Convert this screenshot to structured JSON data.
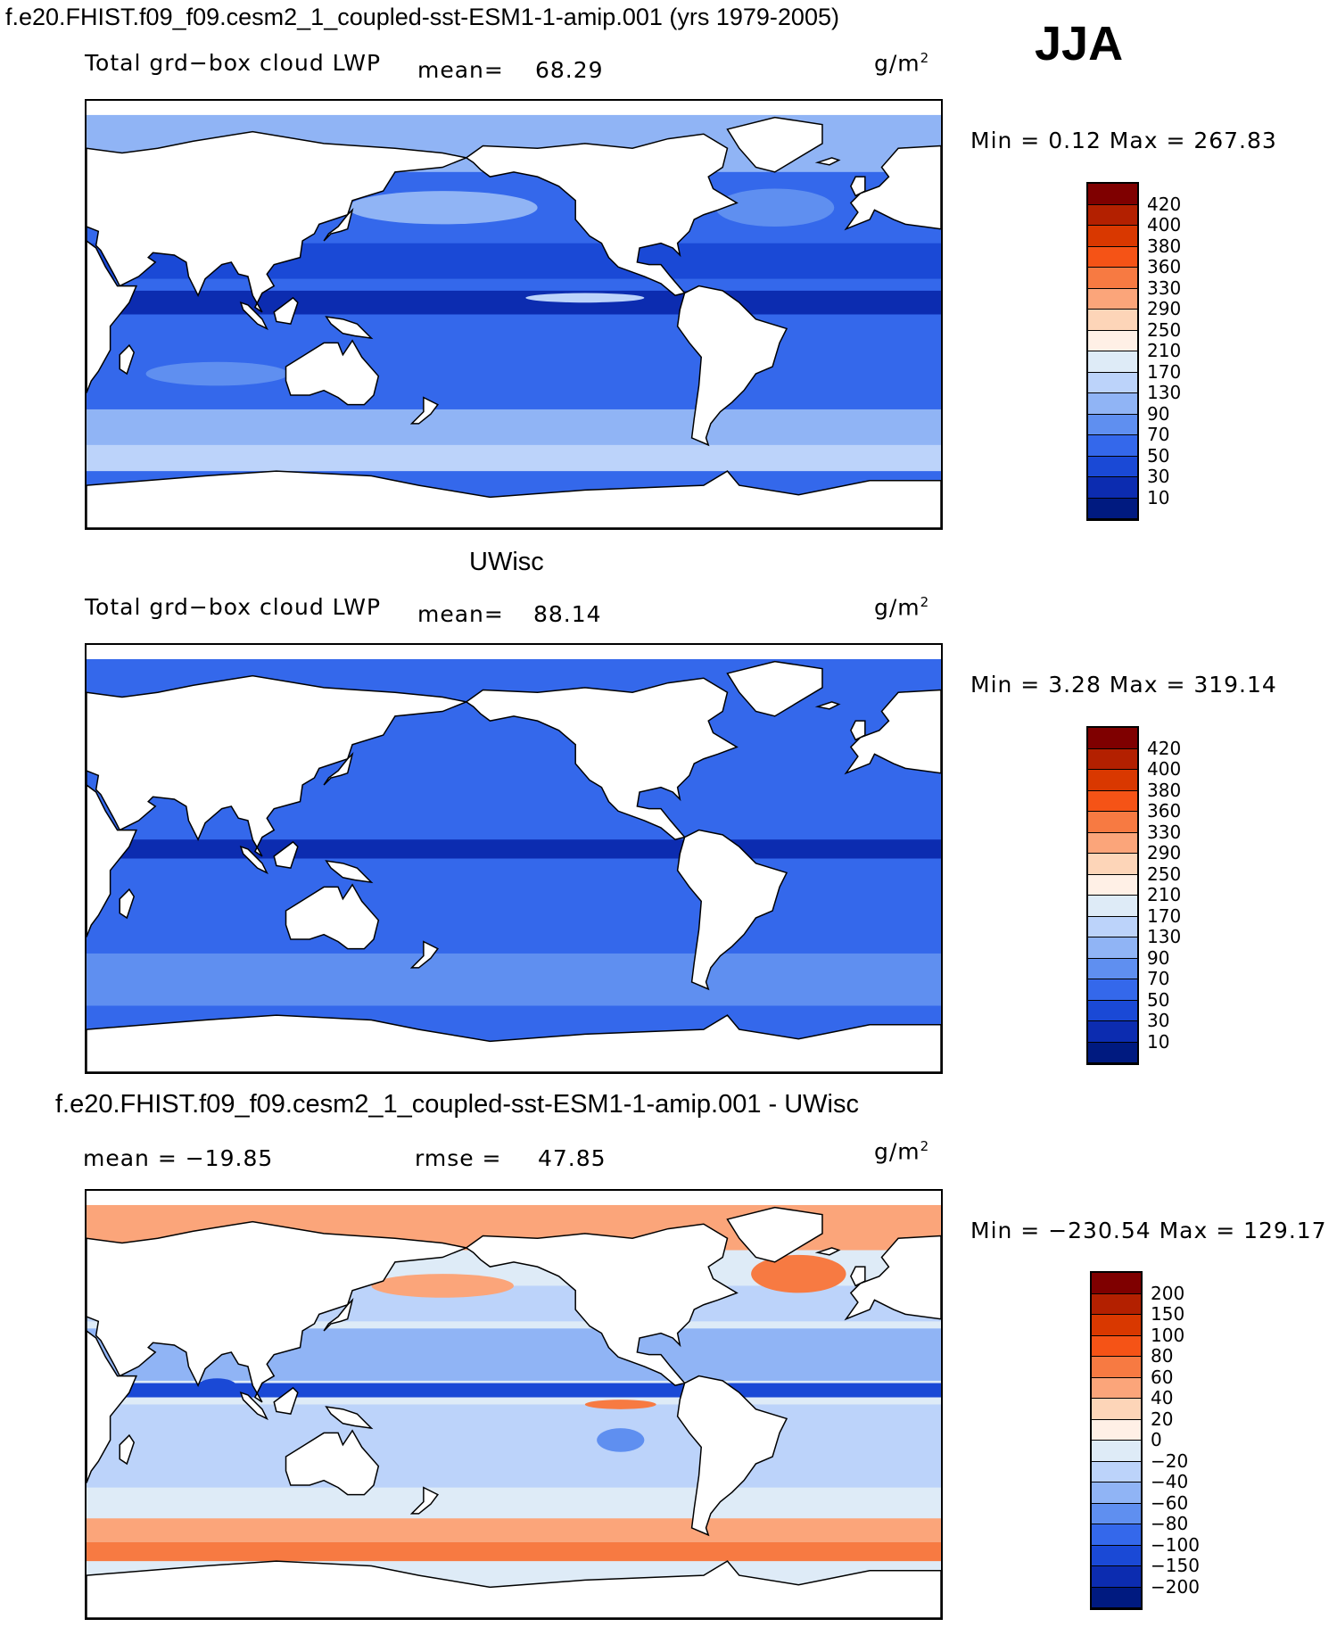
{
  "figure": {
    "main_title": "f.e20.FHIST.f09_f09.cesm2_1_coupled-sst-ESM1-1-amip.001 (yrs 1979-2005)",
    "season": "JJA"
  },
  "panels": [
    {
      "heading": "",
      "left_label": "Total grd−box cloud LWP",
      "stat_label": "mean=",
      "stat_value": "68.29",
      "unit_base": "g/m",
      "unit_exp": "2",
      "minmax": "Min =    0.12  Max =  267.83",
      "colorbar": {
        "labels": [
          "420",
          "400",
          "380",
          "360",
          "330",
          "290",
          "250",
          "210",
          "170",
          "130",
          "90",
          "70",
          "50",
          "30",
          "10"
        ],
        "colors": [
          "#7f0000",
          "#b32000",
          "#d93800",
          "#f55316",
          "#f77a42",
          "#fba57a",
          "#fdd5b8",
          "#fff0e6",
          "#deebf7",
          "#bcd3fa",
          "#90b4f5",
          "#5f8ff0",
          "#3468eb",
          "#1a49d6",
          "#0c2cb0",
          "#001a80"
        ]
      },
      "palette": "base"
    },
    {
      "heading": "UWisc",
      "left_label": "Total grd−box cloud LWP",
      "stat_label": "mean=",
      "stat_value": "88.14",
      "unit_base": "g/m",
      "unit_exp": "2",
      "minmax": "Min =    3.28  Max =  319.14",
      "colorbar": {
        "labels": [
          "420",
          "400",
          "380",
          "360",
          "330",
          "290",
          "250",
          "210",
          "170",
          "130",
          "90",
          "70",
          "50",
          "30",
          "10"
        ],
        "colors": [
          "#7f0000",
          "#b32000",
          "#d93800",
          "#f55316",
          "#f77a42",
          "#fba57a",
          "#fdd5b8",
          "#fff0e6",
          "#deebf7",
          "#bcd3fa",
          "#90b4f5",
          "#5f8ff0",
          "#3468eb",
          "#1a49d6",
          "#0c2cb0",
          "#001a80"
        ]
      },
      "palette": "base"
    },
    {
      "heading": "f.e20.FHIST.f09_f09.cesm2_1_coupled-sst-ESM1-1-amip.001 - UWisc",
      "left_label": "mean = −19.85",
      "stat_label": "rmse =",
      "stat_value": "47.85",
      "unit_base": "g/m",
      "unit_exp": "2",
      "minmax": "Min = −230.54  Max =  129.17",
      "colorbar": {
        "labels": [
          "200",
          "150",
          "100",
          "80",
          "60",
          "40",
          "20",
          "0",
          "−20",
          "−40",
          "−60",
          "−80",
          "−100",
          "−150",
          "−200"
        ],
        "colors": [
          "#7f0000",
          "#b32000",
          "#d93800",
          "#f55316",
          "#f77a42",
          "#fba57a",
          "#fdd5b8",
          "#fff0e6",
          "#deebf7",
          "#bcd3fa",
          "#90b4f5",
          "#5f8ff0",
          "#3468eb",
          "#1a49d6",
          "#0c2cb0",
          "#001a80"
        ]
      },
      "palette": "diff"
    }
  ]
}
